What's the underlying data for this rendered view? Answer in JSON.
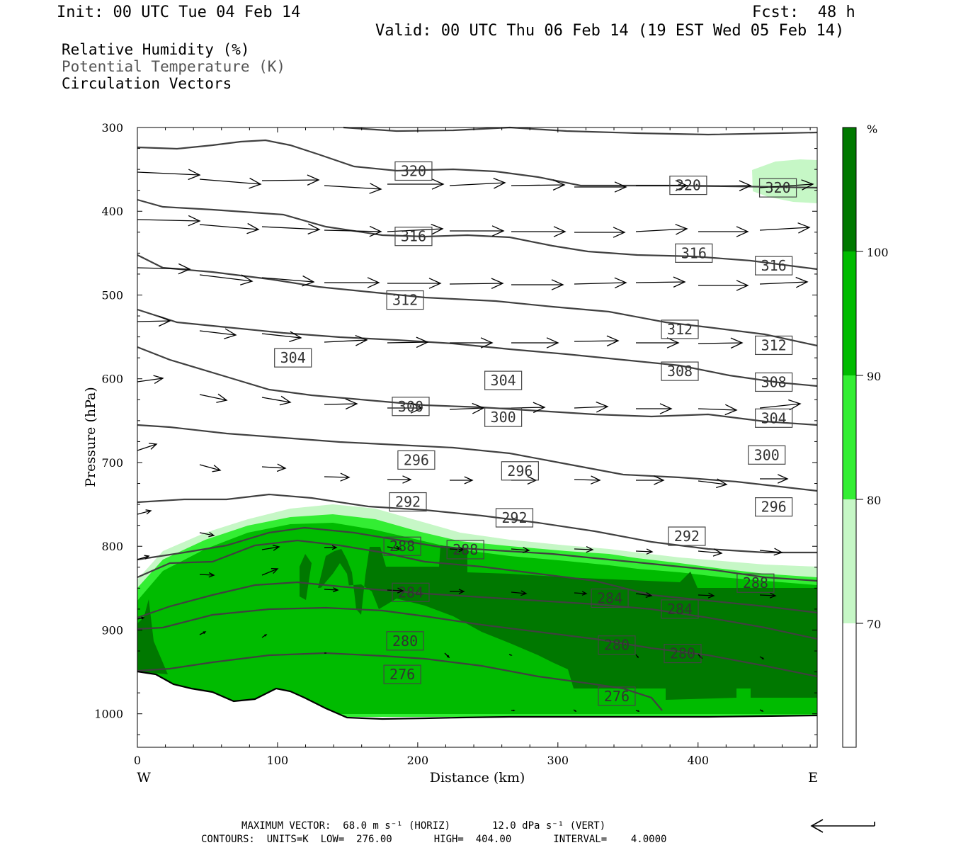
{
  "header": {
    "init": "Init: 00 UTC Tue 04 Feb 14",
    "fcst": "Fcst:  48 h",
    "valid": "Valid: 00 UTC Thu 06 Feb 14 (19 EST Wed 05 Feb 14)"
  },
  "legend": {
    "line1": "Relative Humidity (%)",
    "line2": "Potential Temperature (K)",
    "line3": "Circulation Vectors"
  },
  "footer": {
    "line1": "MAXIMUM VECTOR:  68.0 m s⁻¹ (HORIZ)       12.0 dPa s⁻¹ (VERT)",
    "line2": "CONTOURS:  UNITS=K  LOW=  276.00       HIGH=  404.00       INTERVAL=    4.0000"
  },
  "colors": {
    "rh_70_80": "#c6f7c6",
    "rh_80_90": "#33ee33",
    "rh_90_100": "#00bb00",
    "rh_100": "#007800",
    "contour": "#404040"
  },
  "chart_data": {
    "type": "cross-section",
    "xlabel": "Distance (km)",
    "ylabel": "Pressure (hPa)",
    "xlim": [
      0,
      485
    ],
    "ylim": [
      1040,
      300
    ],
    "x_ticks": [
      "0",
      "100",
      "200",
      "300",
      "400"
    ],
    "y_ticks": [
      "300",
      "400",
      "500",
      "600",
      "700",
      "800",
      "900",
      "1000"
    ],
    "x_end_labels": {
      "left": "W",
      "right": "E"
    },
    "colorbar": {
      "unit": "%",
      "ticks": [
        "70",
        "80",
        "90",
        "100"
      ]
    },
    "contour_labels": [
      {
        "label": "320",
        "x": 197,
        "p": 352
      },
      {
        "label": "320",
        "x": 393,
        "p": 369
      },
      {
        "label": "320",
        "x": 457,
        "p": 372
      },
      {
        "label": "316",
        "x": 197,
        "p": 430
      },
      {
        "label": "316",
        "x": 397,
        "p": 450
      },
      {
        "label": "316",
        "x": 454,
        "p": 465
      },
      {
        "label": "312",
        "x": 191,
        "p": 506
      },
      {
        "label": "312",
        "x": 387,
        "p": 541
      },
      {
        "label": "312",
        "x": 454,
        "p": 560
      },
      {
        "label": "304",
        "x": 111,
        "p": 575
      },
      {
        "label": "304",
        "x": 261,
        "p": 602
      },
      {
        "label": "308",
        "x": 387,
        "p": 591
      },
      {
        "label": "308",
        "x": 454,
        "p": 604
      },
      {
        "label": "300",
        "x": 195,
        "p": 633
      },
      {
        "label": "300",
        "x": 261,
        "p": 646
      },
      {
        "label": "304",
        "x": 454,
        "p": 647
      },
      {
        "label": "296",
        "x": 199,
        "p": 697
      },
      {
        "label": "296",
        "x": 273,
        "p": 710
      },
      {
        "label": "300",
        "x": 449,
        "p": 691
      },
      {
        "label": "292",
        "x": 193,
        "p": 747
      },
      {
        "label": "292",
        "x": 269,
        "p": 766
      },
      {
        "label": "292",
        "x": 392,
        "p": 788
      },
      {
        "label": "296",
        "x": 454,
        "p": 753
      },
      {
        "label": "288",
        "x": 189,
        "p": 800
      },
      {
        "label": "288",
        "x": 234,
        "p": 804
      },
      {
        "label": "288",
        "x": 441,
        "p": 844
      },
      {
        "label": "284",
        "x": 195,
        "p": 855
      },
      {
        "label": "284",
        "x": 337,
        "p": 862
      },
      {
        "label": "284",
        "x": 387,
        "p": 875
      },
      {
        "label": "280",
        "x": 191,
        "p": 913
      },
      {
        "label": "280",
        "x": 342,
        "p": 918
      },
      {
        "label": "280",
        "x": 389,
        "p": 928
      },
      {
        "label": "276",
        "x": 189,
        "p": 953
      },
      {
        "label": "276",
        "x": 342,
        "p": 979
      }
    ]
  }
}
